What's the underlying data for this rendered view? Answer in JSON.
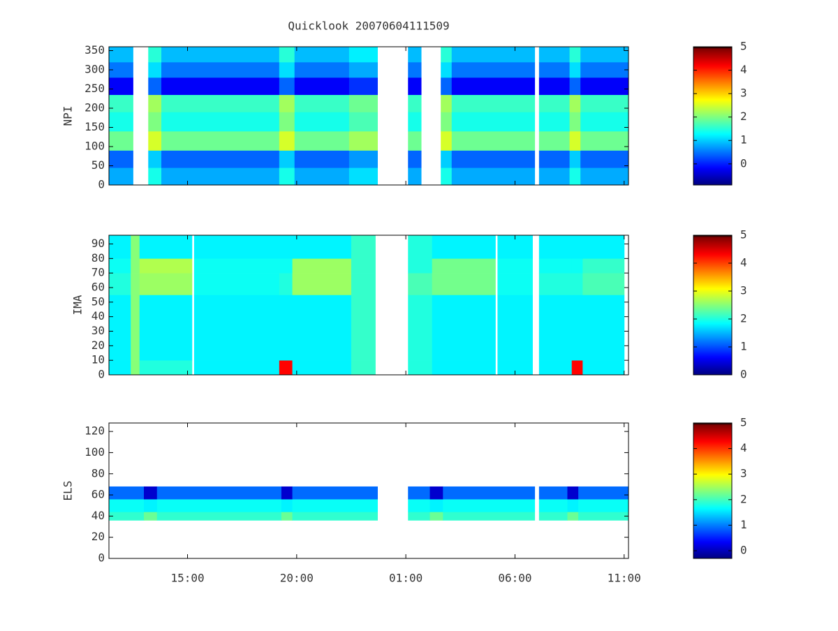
{
  "title": "Quicklook 20070604111509",
  "colormap": "jet",
  "chart_data": [
    {
      "type": "heatmap",
      "ylabel": "NPI",
      "x": [
        11.4,
        12.5,
        13.2,
        13.8,
        19.2,
        19.9,
        22.4,
        23.7,
        25.1,
        25.7,
        26.6,
        27.1,
        30.9,
        31.1,
        32.5,
        33.0,
        35.2
      ],
      "y": [
        0,
        45,
        90,
        140,
        190,
        235,
        280,
        320,
        360
      ],
      "z": [
        [
          0.8,
          null,
          1.4,
          0.8,
          1.4,
          0.8,
          1.1,
          null,
          0.8,
          null,
          1.4,
          0.8,
          null,
          0.8,
          1.4,
          0.8
        ],
        [
          0.4,
          null,
          1.0,
          0.4,
          1.0,
          0.4,
          0.7,
          null,
          0.4,
          null,
          1.0,
          0.4,
          null,
          0.4,
          1.0,
          0.4
        ],
        [
          1.9,
          null,
          2.5,
          1.9,
          2.5,
          1.9,
          2.2,
          null,
          1.9,
          null,
          2.5,
          1.9,
          null,
          1.9,
          2.5,
          1.9
        ],
        [
          1.4,
          null,
          2.0,
          1.4,
          2.0,
          1.4,
          1.7,
          null,
          1.4,
          null,
          2.0,
          1.4,
          null,
          1.4,
          2.0,
          1.4
        ],
        [
          1.6,
          null,
          2.2,
          1.6,
          2.2,
          1.6,
          1.9,
          null,
          1.6,
          null,
          2.2,
          1.6,
          null,
          1.6,
          2.2,
          1.6
        ],
        [
          -0.2,
          null,
          0.4,
          -0.2,
          0.4,
          -0.2,
          0.1,
          null,
          -0.2,
          null,
          0.4,
          -0.2,
          null,
          -0.2,
          0.4,
          -0.2
        ],
        [
          0.5,
          null,
          1.1,
          0.5,
          1.1,
          0.5,
          0.8,
          null,
          0.5,
          null,
          1.1,
          0.5,
          null,
          0.5,
          1.1,
          0.5
        ],
        [
          0.9,
          null,
          1.5,
          0.9,
          1.5,
          0.9,
          1.2,
          null,
          0.9,
          null,
          1.5,
          0.9,
          null,
          0.9,
          1.5,
          0.9
        ]
      ],
      "xlim": [
        11.4,
        35.2
      ],
      "ylim": [
        0,
        360
      ],
      "yticks": [
        0,
        50,
        100,
        150,
        200,
        250,
        300,
        350
      ],
      "clim": [
        -0.9,
        5
      ],
      "cticks": [
        0,
        1,
        2,
        3,
        4,
        5
      ]
    },
    {
      "type": "heatmap",
      "ylabel": "IMA",
      "x": [
        11.4,
        12.4,
        12.8,
        15.2,
        15.3,
        19.2,
        19.8,
        22.5,
        23.6,
        25.1,
        26.2,
        29.1,
        29.2,
        30.8,
        31.1,
        32.6,
        33.1,
        35.0
      ],
      "y": [
        0,
        10,
        55,
        70,
        80,
        96
      ],
      "z": [
        [
          1.8,
          2.5,
          2.0,
          null,
          1.8,
          4.3,
          1.8,
          2.1,
          null,
          2.0,
          1.8,
          null,
          1.8,
          null,
          1.8,
          4.3,
          1.8
        ],
        [
          1.8,
          2.5,
          1.8,
          null,
          1.8,
          1.8,
          1.8,
          2.1,
          null,
          2.0,
          1.8,
          null,
          1.8,
          null,
          1.8,
          1.8,
          1.8
        ],
        [
          2.0,
          2.5,
          2.6,
          null,
          1.9,
          2.0,
          2.6,
          2.1,
          null,
          2.2,
          2.4,
          null,
          1.9,
          null,
          2.0,
          2.0,
          2.2
        ],
        [
          1.9,
          2.5,
          2.7,
          null,
          1.9,
          1.9,
          2.6,
          2.1,
          null,
          2.0,
          2.4,
          null,
          1.9,
          null,
          1.9,
          1.9,
          2.1
        ],
        [
          1.8,
          2.5,
          1.8,
          null,
          1.8,
          1.8,
          1.8,
          2.1,
          null,
          2.0,
          1.8,
          null,
          1.8,
          null,
          1.8,
          1.8,
          1.8
        ]
      ],
      "xlim": [
        11.4,
        35.2
      ],
      "ylim": [
        0,
        96
      ],
      "yticks": [
        0,
        10,
        20,
        30,
        40,
        50,
        60,
        70,
        80,
        90
      ],
      "clim": [
        0,
        5
      ],
      "cticks": [
        0,
        1,
        2,
        3,
        4,
        5
      ]
    },
    {
      "type": "heatmap",
      "ylabel": "ELS",
      "x": [
        11.4,
        13.0,
        13.6,
        19.3,
        19.8,
        23.7,
        25.1,
        26.1,
        26.7,
        30.9,
        31.1,
        32.4,
        32.9,
        35.2
      ],
      "y": [
        36,
        44,
        56,
        68
      ],
      "z": [
        [
          1.9,
          2.2,
          1.9,
          2.2,
          1.9,
          null,
          1.9,
          2.2,
          1.9,
          null,
          1.9,
          2.2,
          1.9
        ],
        [
          1.7,
          1.6,
          1.7,
          1.6,
          1.7,
          null,
          1.7,
          1.6,
          1.7,
          null,
          1.7,
          1.6,
          1.7
        ],
        [
          0.9,
          0.1,
          0.9,
          0.1,
          0.9,
          null,
          0.9,
          0.1,
          0.9,
          null,
          0.9,
          0.1,
          0.9
        ]
      ],
      "xlim": [
        11.4,
        35.2
      ],
      "xticks": [
        {
          "value": 15,
          "label": "15:00"
        },
        {
          "value": 20,
          "label": "20:00"
        },
        {
          "value": 25,
          "label": "01:00"
        },
        {
          "value": 30,
          "label": "06:00"
        },
        {
          "value": 35,
          "label": "11:00"
        }
      ],
      "ylim": [
        0,
        128
      ],
      "yticks": [
        0,
        20,
        40,
        60,
        80,
        100,
        120
      ],
      "clim": [
        -0.3,
        5
      ],
      "cticks": [
        0,
        1,
        2,
        3,
        4,
        5
      ]
    }
  ]
}
